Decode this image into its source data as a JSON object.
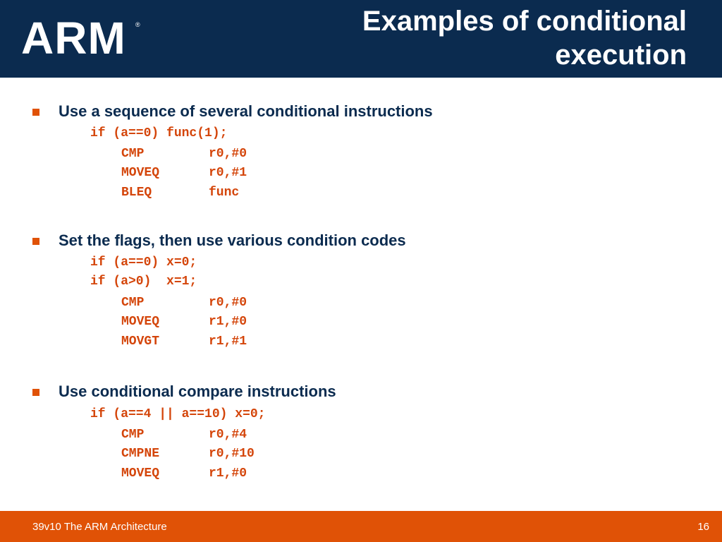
{
  "header": {
    "logo_text": "ARM",
    "logo_mark": "®",
    "title_line1": "Examples of conditional",
    "title_line2": "execution"
  },
  "sections": [
    {
      "heading": "Use a sequence of several conditional instructions",
      "c_lines": [
        "if (a==0) func(1);"
      ],
      "asm": [
        {
          "op": "CMP",
          "args": "r0,#0"
        },
        {
          "op": "MOVEQ",
          "args": "r0,#1"
        },
        {
          "op": "BLEQ",
          "args": "func"
        }
      ]
    },
    {
      "heading": "Set the flags, then use various condition codes",
      "c_lines": [
        "if (a==0) x=0;",
        "if (a>0)  x=1;"
      ],
      "asm": [
        {
          "op": "CMP",
          "args": "r0,#0"
        },
        {
          "op": "MOVEQ",
          "args": "r1,#0"
        },
        {
          "op": "MOVGT",
          "args": "r1,#1"
        }
      ]
    },
    {
      "heading": "Use conditional compare instructions",
      "c_lines": [
        "if (a==4 || a==10) x=0;"
      ],
      "asm": [
        {
          "op": "CMP",
          "args": "r0,#4"
        },
        {
          "op": "CMPNE",
          "args": "r0,#10"
        },
        {
          "op": "MOVEQ",
          "args": "r1,#0"
        }
      ]
    }
  ],
  "footer": {
    "left": "39v10 The ARM Architecture",
    "page": "16"
  },
  "colors": {
    "header_bg": "#0b2b4f",
    "accent": "#e05206",
    "code": "#d4450a"
  }
}
